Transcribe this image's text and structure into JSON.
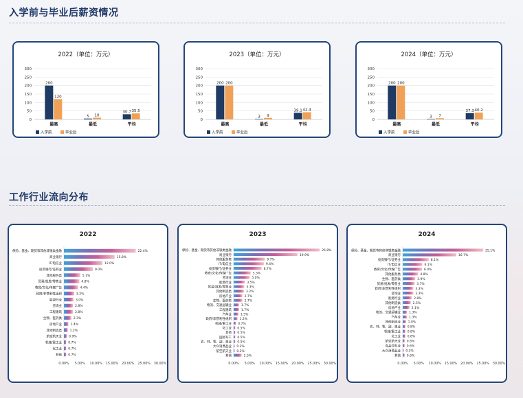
{
  "sections": {
    "salary_title": "入学前与毕业后薪资情况",
    "industry_title": "工作行业流向分布"
  },
  "colors": {
    "before": "#1f3a63",
    "after": "#f0a157",
    "industry_bar_start": "#3ea3d8",
    "industry_bar_end": "#f2bcc6"
  },
  "chart_data": [
    {
      "type": "bar",
      "title": "2022（单位：万元）",
      "categories": [
        "最高",
        "最低",
        "平均"
      ],
      "series": [
        {
          "name": "入学前",
          "values": [
            200,
            5,
            30.7
          ]
        },
        {
          "name": "毕业后",
          "values": [
            120,
            10,
            35.5
          ]
        }
      ],
      "value_labels": [
        [
          "200",
          "5",
          "30.7"
        ],
        [
          "120",
          "10",
          "35.5"
        ]
      ],
      "yticks": [
        "0",
        "50",
        "100",
        "150",
        "200",
        "250",
        "300"
      ],
      "ylim": [
        0,
        300
      ],
      "grid": true,
      "legend": "bottom-left"
    },
    {
      "type": "bar",
      "title": "2023（单位：万元）",
      "categories": [
        "最高",
        "最低",
        "平均"
      ],
      "series": [
        {
          "name": "入学前",
          "values": [
            200,
            3,
            39.1
          ]
        },
        {
          "name": "毕业后",
          "values": [
            200,
            9,
            42.4
          ]
        }
      ],
      "value_labels": [
        [
          "200",
          "3",
          "39.1"
        ],
        [
          "200",
          "9",
          "42.4"
        ]
      ],
      "yticks": [
        "0",
        "50",
        "100",
        "150",
        "200",
        "250",
        "300"
      ],
      "ylim": [
        0,
        300
      ],
      "grid": true,
      "legend": "bottom-left"
    },
    {
      "type": "bar",
      "title": "2024（单位：万元）",
      "categories": [
        "最高",
        "最低",
        "平均"
      ],
      "series": [
        {
          "name": "入学前",
          "values": [
            200,
            3,
            37.3
          ]
        },
        {
          "name": "毕业后",
          "values": [
            200,
            7,
            40.2
          ]
        }
      ],
      "value_labels": [
        [
          "200",
          "3",
          "37.3"
        ],
        [
          "200",
          "7",
          "40.2"
        ]
      ],
      "yticks": [
        "0",
        "50",
        "100",
        "150",
        "200",
        "250",
        "300"
      ],
      "ylim": [
        0,
        300
      ],
      "grid": true,
      "legend": "bottom-left"
    },
    {
      "type": "bar",
      "orientation": "horizontal",
      "title": "2022",
      "categories": [
        "保险、基金、期货等其他非银类金融",
        "商业银行",
        "IT/电信业",
        "投资银行/证券业",
        "其他服务类",
        "贸易/批发/零售业",
        "教育/文化/传媒广告",
        "政府/非营利性组织",
        "能源行业",
        "咨询业",
        "工程建筑",
        "生物、医药类",
        "房地产业",
        "其他制造类",
        "航空航天业",
        "机械/重工业",
        "化工业",
        "其他"
      ],
      "values": [
        22.4,
        15.8,
        12.0,
        9.0,
        5.1,
        4.8,
        4.4,
        3.2,
        3.0,
        2.8,
        2.8,
        2.3,
        1.4,
        1.2,
        0.9,
        0.7,
        0.7,
        0.7
      ],
      "value_labels": [
        "22.4%",
        "15.8%",
        "12.0%",
        "9.0%",
        "5.1%",
        "4.8%",
        "4.4%",
        "3.2%",
        "3.0%",
        "2.8%",
        "2.8%",
        "2.3%",
        "1.4%",
        "1.2%",
        "0.9%",
        "0.7%",
        "0.7%",
        "0.7%"
      ],
      "xticks": [
        "0.00%",
        "5.00%",
        "10.00%",
        "15.00%",
        "20.00%",
        "25.00%",
        "30.00%"
      ],
      "xlim": [
        0,
        30
      ]
    },
    {
      "type": "bar",
      "orientation": "horizontal",
      "title": "2023",
      "categories": [
        "保险、基金、期货等其他非银类金融",
        "商业银行",
        "其他服务类",
        "IT/电信业",
        "投资银行/证券业",
        "教育/文化/传媒广告",
        "咨询业",
        "能源行业",
        "贸易/批发/零售业",
        "其他制造类",
        "房地产业",
        "生物、医药类",
        "物流、交通运输业",
        "工程建筑",
        "汽车业",
        "政府/非营利性组织",
        "机械/重工业",
        "化工业",
        "其他",
        "国防军工",
        "农、林、牧、副、渔业",
        "大众消费品业",
        "航空航天业",
        "其他"
      ],
      "values": [
        26.8,
        19.9,
        9.7,
        9.4,
        8.7,
        5.3,
        5.0,
        3.5,
        3.3,
        3.2,
        2.7,
        2.7,
        1.7,
        1.7,
        1.5,
        1.2,
        0.7,
        0.5,
        0.5,
        0.5,
        0.5,
        0.3,
        0.3,
        2.5
      ],
      "value_labels": [
        "26.8%",
        "19.9%",
        "9.7%",
        "9.4%",
        "8.7%",
        "5.3%",
        "5.0%",
        "3.5%",
        "3.3%",
        "3.2%",
        "2.7%",
        "2.7%",
        "1.7%",
        "1.7%",
        "1.5%",
        "1.2%",
        "0.7%",
        "0.5%",
        "0.5%",
        "0.5%",
        "0.5%",
        "0.3%",
        "0.3%",
        "2.5%"
      ],
      "xticks": [
        "0.00%",
        "5.00%",
        "10.00%",
        "15.00%",
        "20.00%",
        "25.00%",
        "30.00%"
      ],
      "xlim": [
        0,
        30
      ]
    },
    {
      "type": "bar",
      "orientation": "horizontal",
      "title": "2024",
      "categories": [
        "保险、基金、期货等其他非银类金融",
        "商业银行",
        "投资银行/证券业",
        "IT/电信业",
        "教育/文化/传媒广告",
        "其他服务类",
        "生物、医药类",
        "贸易/批发/零售业",
        "政府/非营利性组织",
        "咨询业",
        "能源行业",
        "其他制造类",
        "房地产业",
        "物流、交通运输业",
        "汽车业",
        "其他制造业",
        "农、林、牧、副、渔业",
        "机械/重工业",
        "化工业",
        "航空航天业",
        "食品饮料业",
        "大众消费品业",
        "其他"
      ],
      "values": [
        25.1,
        16.7,
        8.1,
        6.1,
        6.0,
        4.8,
        3.9,
        3.7,
        3.3,
        3.3,
        2.8,
        2.5,
        2.1,
        1.3,
        1.3,
        1.0,
        0.8,
        0.8,
        0.8,
        0.6,
        0.6,
        0.3,
        0.6
      ],
      "value_labels": [
        "25.1%",
        "16.7%",
        "8.1%",
        "6.1%",
        "6.0%",
        "4.8%",
        "3.9%",
        "3.7%",
        "3.3%",
        "3.3%",
        "2.8%",
        "2.5%",
        "2.1%",
        "1.3%",
        "1.3%",
        "1.0%",
        "0.8%",
        "0.8%",
        "0.8%",
        "0.6%",
        "0.6%",
        "0.3%",
        "0.6%"
      ],
      "xticks": [
        "0.00%",
        "5.00%",
        "10.00%",
        "15.00%",
        "20.00%",
        "25.00%",
        "30.00%"
      ],
      "xlim": [
        0,
        30
      ]
    }
  ]
}
